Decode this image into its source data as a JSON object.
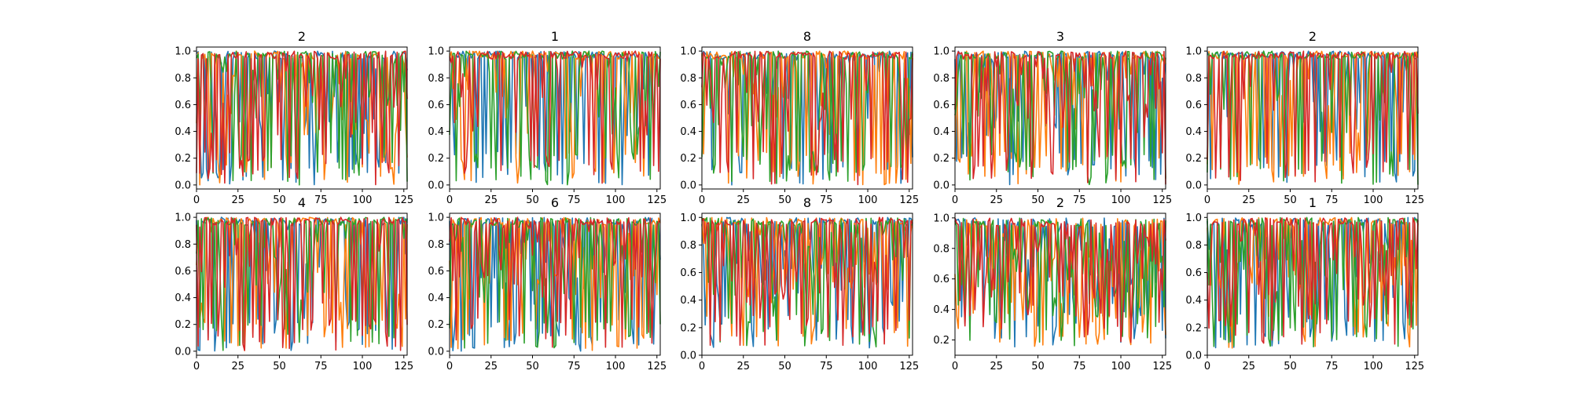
{
  "colors": [
    "#1f77b4",
    "#ff7f0e",
    "#2ca02c",
    "#d62728"
  ],
  "chart_data": [
    {
      "type": "line",
      "title": "2",
      "x_range": [
        0,
        127
      ],
      "ylim": [
        -0.03,
        1.03
      ],
      "yticks": [
        "0.0",
        "0.2",
        "0.4",
        "0.6",
        "0.8",
        "1.0"
      ],
      "xticks": [
        "0",
        "25",
        "50",
        "75",
        "100",
        "125"
      ],
      "seed": 11,
      "low": 0.0,
      "spike": 0.45,
      "density": 0.55
    },
    {
      "type": "line",
      "title": "1",
      "x_range": [
        0,
        127
      ],
      "ylim": [
        -0.03,
        1.03
      ],
      "yticks": [
        "0.0",
        "0.2",
        "0.4",
        "0.6",
        "0.8",
        "1.0"
      ],
      "xticks": [
        "0",
        "25",
        "50",
        "75",
        "100",
        "125"
      ],
      "seed": 23,
      "low": 0.0,
      "spike": 0.6,
      "density": 0.65
    },
    {
      "type": "line",
      "title": "8",
      "x_range": [
        0,
        127
      ],
      "ylim": [
        -0.03,
        1.03
      ],
      "yticks": [
        "0.0",
        "0.2",
        "0.4",
        "0.6",
        "0.8",
        "1.0"
      ],
      "xticks": [
        "0",
        "25",
        "50",
        "75",
        "100",
        "125"
      ],
      "seed": 37,
      "low": 0.0,
      "spike": 0.5,
      "density": 0.6
    },
    {
      "type": "line",
      "title": "3",
      "x_range": [
        0,
        127
      ],
      "ylim": [
        -0.03,
        1.03
      ],
      "yticks": [
        "0.0",
        "0.2",
        "0.4",
        "0.6",
        "0.8",
        "1.0"
      ],
      "xticks": [
        "0",
        "25",
        "50",
        "75",
        "100",
        "125"
      ],
      "seed": 41,
      "low": 0.0,
      "spike": 0.4,
      "density": 0.5
    },
    {
      "type": "line",
      "title": "2",
      "x_range": [
        0,
        127
      ],
      "ylim": [
        -0.03,
        1.03
      ],
      "yticks": [
        "0.0",
        "0.2",
        "0.4",
        "0.6",
        "0.8",
        "1.0"
      ],
      "xticks": [
        "0",
        "25",
        "50",
        "75",
        "100",
        "125"
      ],
      "seed": 53,
      "low": 0.0,
      "spike": 0.6,
      "density": 0.65
    },
    {
      "type": "line",
      "title": "4",
      "x_range": [
        0,
        127
      ],
      "ylim": [
        -0.03,
        1.03
      ],
      "yticks": [
        "0.0",
        "0.2",
        "0.4",
        "0.6",
        "0.8",
        "1.0"
      ],
      "xticks": [
        "0",
        "25",
        "50",
        "75",
        "100",
        "125"
      ],
      "seed": 67,
      "low": 0.0,
      "spike": 0.55,
      "density": 0.6
    },
    {
      "type": "line",
      "title": "6",
      "x_range": [
        0,
        127
      ],
      "ylim": [
        -0.03,
        1.03
      ],
      "yticks": [
        "0.0",
        "0.2",
        "0.4",
        "0.6",
        "0.8",
        "1.0"
      ],
      "xticks": [
        "0",
        "25",
        "50",
        "75",
        "100",
        "125"
      ],
      "seed": 79,
      "low": 0.0,
      "spike": 0.4,
      "density": 0.5
    },
    {
      "type": "line",
      "title": "8",
      "x_range": [
        0,
        127
      ],
      "ylim": [
        0.0,
        1.03
      ],
      "yticks": [
        "0.0",
        "0.2",
        "0.4",
        "0.6",
        "0.8",
        "1.0"
      ],
      "xticks": [
        "0",
        "25",
        "50",
        "75",
        "100",
        "125"
      ],
      "seed": 83,
      "low": 0.05,
      "spike": 0.35,
      "density": 0.45
    },
    {
      "type": "line",
      "title": "2",
      "x_range": [
        0,
        127
      ],
      "ylim": [
        0.1,
        1.03
      ],
      "yticks": [
        "0.2",
        "0.4",
        "0.6",
        "0.8",
        "1.0"
      ],
      "xticks": [
        "0",
        "25",
        "50",
        "75",
        "100",
        "125"
      ],
      "seed": 97,
      "low": 0.15,
      "spike": 0.3,
      "density": 0.35
    },
    {
      "type": "line",
      "title": "1",
      "x_range": [
        0,
        127
      ],
      "ylim": [
        0.0,
        1.03
      ],
      "yticks": [
        "0.0",
        "0.2",
        "0.4",
        "0.6",
        "0.8",
        "1.0"
      ],
      "xticks": [
        "0",
        "25",
        "50",
        "75",
        "100",
        "125"
      ],
      "seed": 101,
      "low": 0.05,
      "spike": 0.35,
      "density": 0.45
    }
  ]
}
